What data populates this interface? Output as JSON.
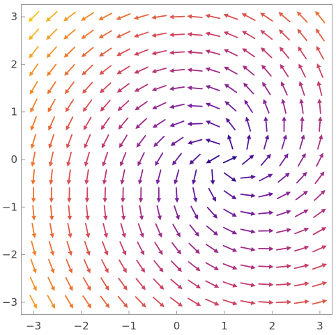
{
  "chart_data": {
    "type": "vector_field",
    "title": "",
    "xlabel": "",
    "ylabel": "",
    "xlim": [
      -3.25,
      3.25
    ],
    "ylim": [
      -3.25,
      3.25
    ],
    "x_ticks": [
      -3,
      -2,
      -1,
      0,
      1,
      2,
      3
    ],
    "y_ticks": [
      -3,
      -2,
      -1,
      0,
      1,
      2,
      3
    ],
    "x_tick_labels": [
      "−3",
      "−2",
      "−1",
      "0",
      "1",
      "2",
      "3"
    ],
    "y_tick_labels": [
      "−3",
      "−2",
      "−1",
      "0",
      "1",
      "2",
      "3"
    ],
    "grid": false,
    "legend": "none",
    "grid_points_per_axis": 17,
    "colormap": [
      "#2d0a8c",
      "#7a1fa0",
      "#c93a6b",
      "#f0702c",
      "#f7c520"
    ],
    "field": {
      "center": [
        1,
        0
      ],
      "u_terms": [
        "(x-1)/r",
        "-y",
        "x^2-y^2-1"
      ],
      "v_terms": [
        "y/r",
        "(x-1)",
        "2xy"
      ]
    }
  }
}
